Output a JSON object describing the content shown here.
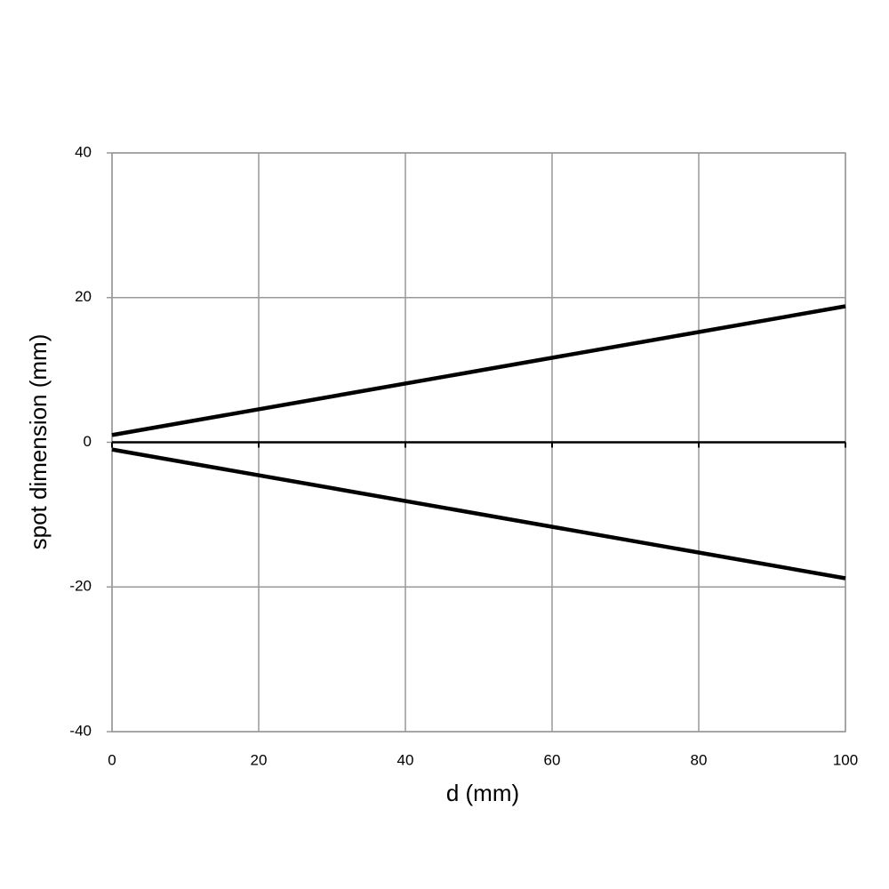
{
  "chart_data": {
    "type": "line",
    "x_label": "d (mm)",
    "y_label": "spot dimension (mm)",
    "series": [
      {
        "color": "#000000",
        "x": [
          0,
          100
        ],
        "values": [
          1.0,
          18.8
        ]
      },
      {
        "color": "#000000",
        "x": [
          0,
          100
        ],
        "values": [
          -1.0,
          -18.8
        ]
      }
    ],
    "xlim": [
      0,
      100
    ],
    "xticks": [
      0,
      20,
      40,
      60,
      80,
      100
    ],
    "ylim": [
      -40,
      40
    ],
    "yticks": [
      -40,
      -20,
      0,
      20,
      40
    ],
    "grid": true
  }
}
